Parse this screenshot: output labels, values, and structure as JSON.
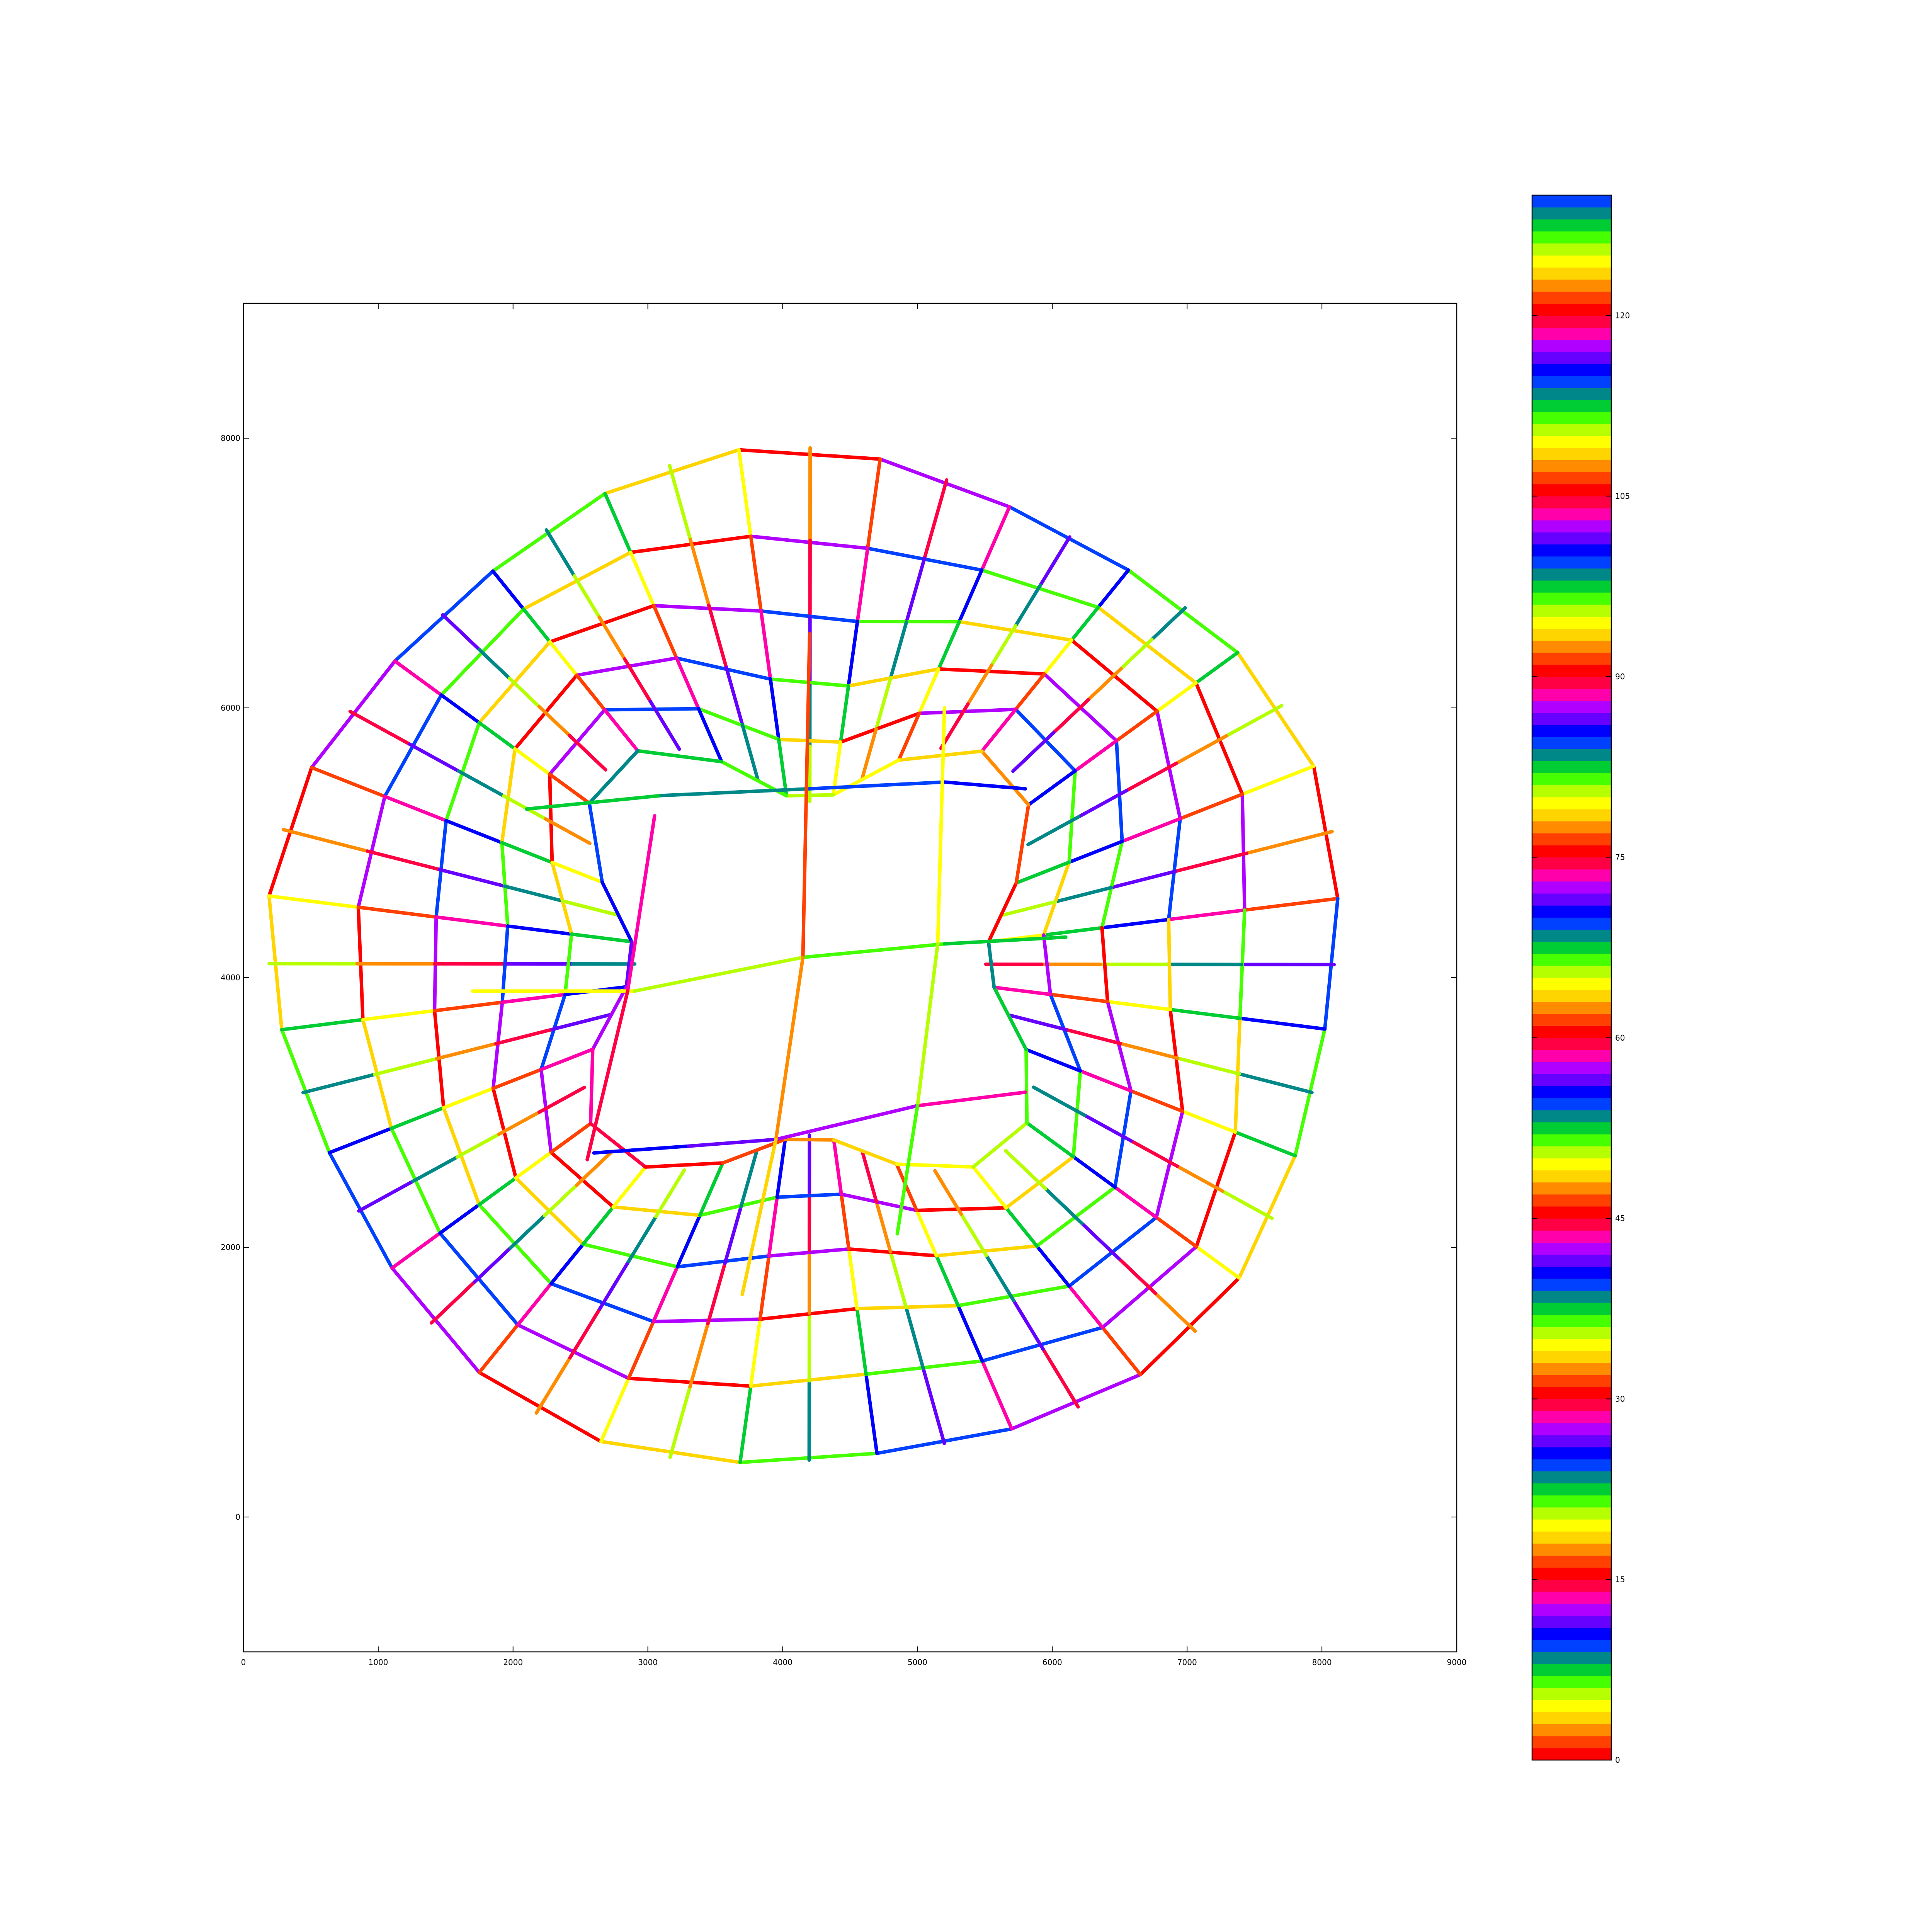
{
  "chart_data": {
    "type": "line",
    "title": "",
    "xlabel": "",
    "ylabel": "",
    "xlim": [
      0,
      9000
    ],
    "ylim": [
      -1000,
      9000
    ],
    "x_ticks": [
      "0",
      "1000",
      "2000",
      "3000",
      "4000",
      "5000",
      "6000",
      "7000",
      "8000",
      "9000"
    ],
    "y_ticks": [
      "0",
      "2000",
      "4000",
      "6000",
      "8000"
    ],
    "grid": false,
    "legend": "none",
    "mesh": {
      "center": [
        4200,
        4100
      ],
      "ring_radii": [
        3950,
        3550,
        3200,
        2850,
        2500,
        2100
      ],
      "spokes": 24,
      "inner_shape": "four-lobed hole",
      "inner_cross": [
        [
          [
            1700,
            3900
          ],
          [
            2900,
            3900
          ],
          [
            4150,
            4150
          ],
          [
            5200,
            4250
          ],
          [
            6100,
            4300
          ]
        ],
        [
          [
            2100,
            5250
          ],
          [
            3100,
            5350
          ],
          [
            4200,
            5400
          ],
          [
            5200,
            5450
          ],
          [
            5800,
            5400
          ]
        ],
        [
          [
            2600,
            2700
          ],
          [
            3300,
            2750
          ],
          [
            3950,
            2800
          ],
          [
            5000,
            3050
          ],
          [
            5800,
            3150
          ]
        ],
        [
          [
            3050,
            5200
          ],
          [
            2850,
            3900
          ],
          [
            2550,
            2650
          ]
        ],
        [
          [
            4200,
            6550
          ],
          [
            4150,
            4150
          ],
          [
            3950,
            2800
          ],
          [
            3700,
            1650
          ]
        ],
        [
          [
            5200,
            6000
          ],
          [
            5150,
            4250
          ],
          [
            5000,
            3050
          ],
          [
            4850,
            2100
          ]
        ]
      ]
    },
    "colorbar": {
      "min": 0,
      "max": 130,
      "ticks": [
        "0",
        "15",
        "30",
        "45",
        "60",
        "75",
        "90",
        "105",
        "120"
      ],
      "palette": [
        "#ff0000",
        "#ff4000",
        "#ff8c00",
        "#ffd500",
        "#ffff00",
        "#b6ff00",
        "#46ff00",
        "#00cc33",
        "#008888",
        "#0040ff",
        "#0000ff",
        "#6600ff",
        "#b000ff",
        "#ff00aa",
        "#ff0044"
      ],
      "cycle": 15
    }
  }
}
